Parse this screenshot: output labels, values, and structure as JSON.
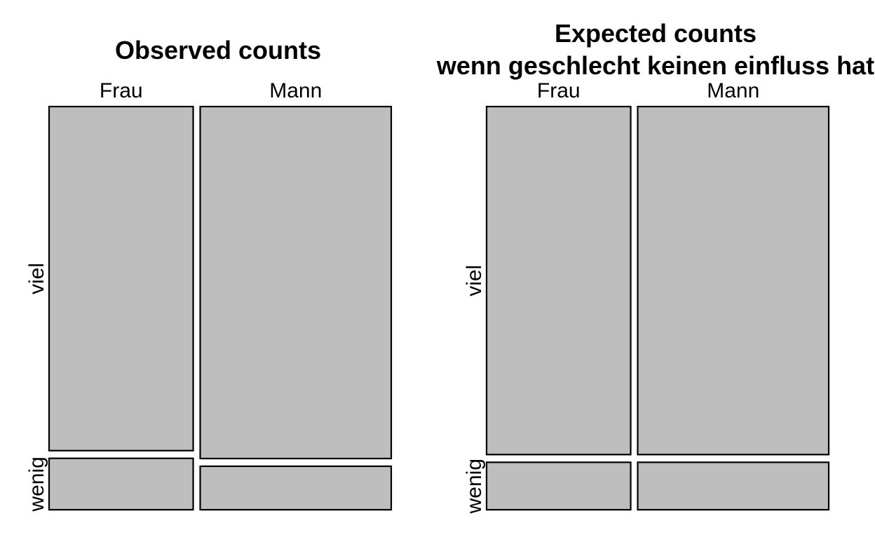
{
  "chart_data": [
    {
      "type": "mosaic",
      "title_lines": [
        "Observed counts"
      ],
      "columns": [
        "Frau",
        "Mann"
      ],
      "rows": [
        "viel",
        "wenig"
      ],
      "column_share": [
        0.43,
        0.57
      ],
      "proportions": [
        [
          0.87,
          0.13
        ],
        [
          0.89,
          0.11
        ]
      ]
    },
    {
      "type": "mosaic",
      "title_lines": [
        "Expected counts",
        "wenn geschlecht keinen einfluss hat"
      ],
      "columns": [
        "Frau",
        "Mann"
      ],
      "rows": [
        "viel",
        "wenig"
      ],
      "column_share": [
        0.43,
        0.57
      ],
      "proportions": [
        [
          0.88,
          0.12
        ],
        [
          0.88,
          0.12
        ]
      ]
    }
  ],
  "colors": {
    "tile_fill": "#bebebe",
    "tile_stroke": "#000000",
    "background": "#ffffff"
  }
}
